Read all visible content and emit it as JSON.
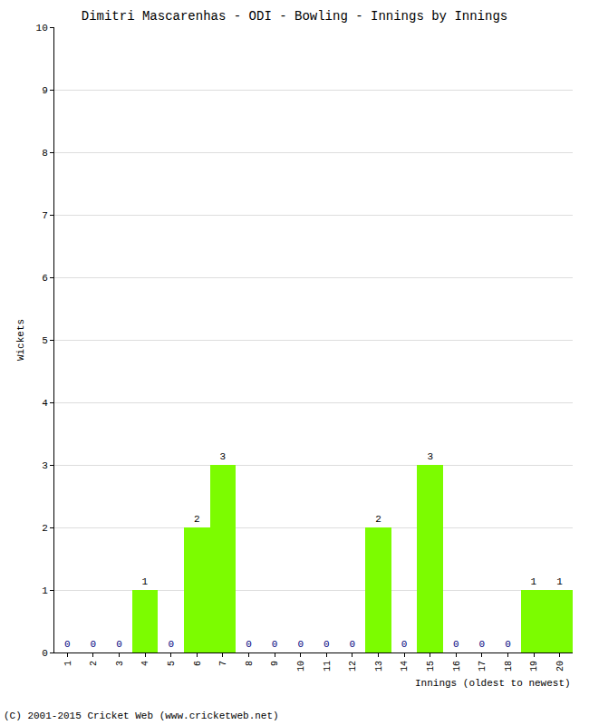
{
  "chart_data": {
    "type": "bar",
    "title": "Dimitri Mascarenhas - ODI - Bowling - Innings by Innings",
    "xlabel": "Innings (oldest to newest)",
    "ylabel": "Wickets",
    "categories": [
      "1",
      "2",
      "3",
      "4",
      "5",
      "6",
      "7",
      "8",
      "9",
      "10",
      "11",
      "12",
      "13",
      "14",
      "15",
      "16",
      "17",
      "18",
      "19",
      "20"
    ],
    "values": [
      0,
      0,
      0,
      1,
      0,
      2,
      3,
      0,
      0,
      0,
      0,
      0,
      2,
      0,
      3,
      0,
      0,
      0,
      1,
      1
    ],
    "color": "#7cfc00",
    "ylim": [
      0,
      10
    ],
    "yticks": [
      0,
      1,
      2,
      3,
      4,
      5,
      6,
      7,
      8,
      9,
      10
    ],
    "grid": true,
    "data_labels": true,
    "annotations": [
      "(C) 2001-2015 Cricket Web (www.cricketweb.net)"
    ]
  }
}
